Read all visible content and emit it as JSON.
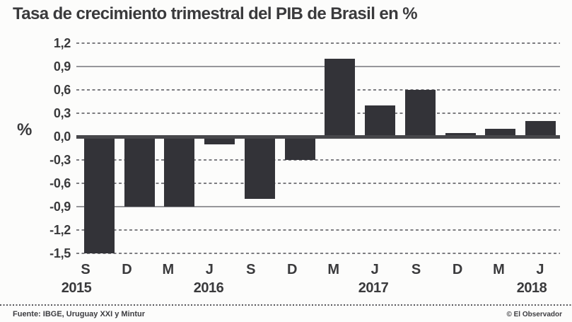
{
  "title": "Tasa de crecimiento trimestral del PIB de Brasil en %",
  "y_axis": {
    "unit_label": "%",
    "tick_labels": [
      "1,2",
      "0,9",
      "0,6",
      "0,3",
      "0,0",
      "-0,3",
      "-0,6",
      "-0,9",
      "-1,2",
      "-1,5"
    ]
  },
  "x_axis": {
    "quarter_labels": [
      "S",
      "D",
      "M",
      "J",
      "S",
      "D",
      "M",
      "J",
      "S",
      "D",
      "M",
      "J"
    ],
    "year_labels": [
      "2015",
      "2016",
      "2017",
      "2018"
    ]
  },
  "footer": {
    "source": "Fuente: IBGE, Uruguay XXI y Mintur",
    "credit": "© El Observador"
  },
  "colors": {
    "background": "#fcfcfb",
    "bar": "#333338",
    "zero_line": "#47474b",
    "grid_dashed": "#7d7d81",
    "grid_solid": "#97979b",
    "text": "#3a3a3c"
  },
  "chart_data": {
    "type": "bar",
    "categories": [
      "S 2015",
      "D 2015",
      "M 2016",
      "J 2016",
      "S 2016",
      "D 2016",
      "M 2017",
      "J 2017",
      "S 2017",
      "D 2017",
      "M 2018",
      "J 2018"
    ],
    "values": [
      -1.5,
      -0.9,
      -0.9,
      -0.1,
      -0.8,
      -0.3,
      1.0,
      0.4,
      0.6,
      0.05,
      0.1,
      0.2
    ],
    "title": "Tasa de crecimiento trimestral del PIB de Brasil en %",
    "xlabel": "",
    "ylabel": "%",
    "ylim": [
      -1.5,
      1.2
    ],
    "ytick_step": 0.3,
    "grid": "horizontal; dashed gray lines, solid gray lines at 0.9 and -0.9, thick dark axis at 0",
    "legend": "none",
    "bar_color": "#333338"
  }
}
